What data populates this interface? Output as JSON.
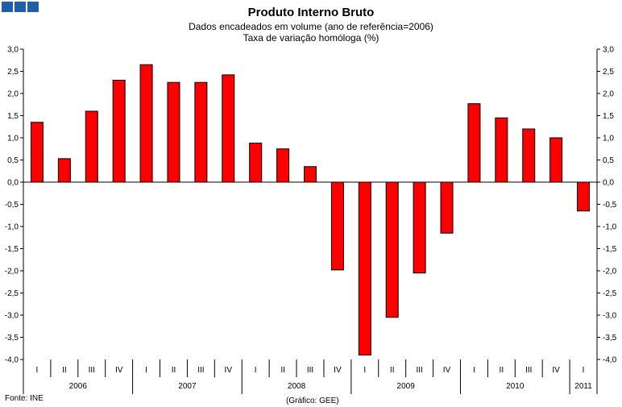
{
  "header": {
    "title": "Produto Interno Bruto",
    "subtitle1": "Dados encadeados em volume (ano de referência=2006)",
    "subtitle2": "Taxa de variação homóloga (%)"
  },
  "footer": {
    "source": "Fonte: INE",
    "credit": "(Gráfico: GEE)"
  },
  "colors": {
    "bar": "#ff0000",
    "bar_border": "#000000",
    "logo": "#1f5fa8"
  },
  "logo_icon": "three-blue-squares",
  "chart_data": {
    "type": "bar",
    "title": "Produto Interno Bruto",
    "subtitle": [
      "Dados encadeados em volume (ano de referência=2006)",
      "Taxa de variação homóloga (%)"
    ],
    "ylim": [
      -4.0,
      3.0
    ],
    "ytick_step": 0.5,
    "ytick_labels": [
      "3,0",
      "2,5",
      "2,0",
      "1,5",
      "1,0",
      "0,5",
      "0,0",
      "-0,5",
      "-1,0",
      "-1,5",
      "-2,0",
      "-2,5",
      "-3,0",
      "-3,5",
      "-4,0"
    ],
    "y_axes": "left-and-right",
    "grid": false,
    "legend": "none",
    "categories": [
      "I",
      "II",
      "III",
      "IV",
      "I",
      "II",
      "III",
      "IV",
      "I",
      "II",
      "III",
      "IV",
      "I",
      "II",
      "III",
      "IV",
      "I",
      "II",
      "III",
      "IV",
      "I"
    ],
    "years": [
      {
        "label": "2006",
        "quarters": 4
      },
      {
        "label": "2007",
        "quarters": 4
      },
      {
        "label": "2008",
        "quarters": 4
      },
      {
        "label": "2009",
        "quarters": 4
      },
      {
        "label": "2010",
        "quarters": 4
      },
      {
        "label": "2011",
        "quarters": 1
      }
    ],
    "values": [
      1.35,
      0.53,
      1.6,
      2.3,
      2.65,
      2.25,
      2.25,
      2.42,
      0.88,
      0.75,
      0.35,
      -1.98,
      -3.9,
      -3.05,
      -2.05,
      -1.15,
      1.77,
      1.45,
      1.2,
      1.0,
      -0.65
    ]
  }
}
